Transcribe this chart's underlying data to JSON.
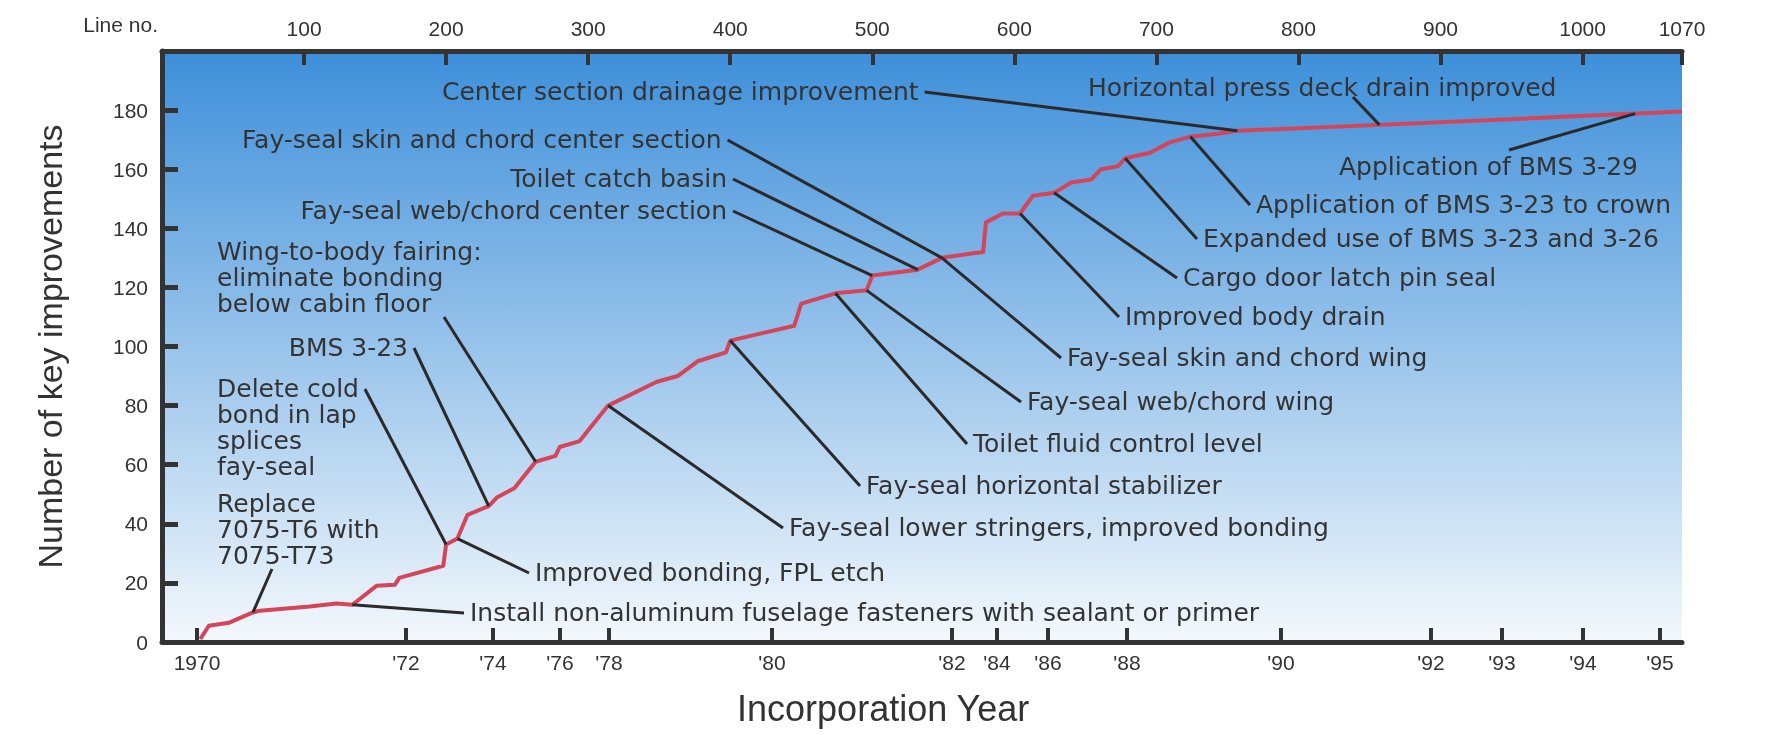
{
  "chart_data": {
    "type": "line",
    "xlabel": "Line no.",
    "ylabel": "Number of key improvements",
    "series": [
      {
        "color": "#d4455a",
        "x": [
          27,
          33,
          47,
          64,
          69,
          104,
          123,
          134,
          151,
          164,
          167,
          198,
          200,
          208,
          215,
          230,
          236,
          248,
          263,
          277,
          280,
          294,
          314,
          348,
          363,
          377,
          397,
          400,
          445,
          450,
          474,
          496,
          500,
          532,
          549,
          570,
          578,
          580,
          592,
          604,
          613,
          628,
          640,
          654,
          661,
          673,
          678,
          695,
          709,
          724,
          743,
          757,
          857,
          953,
          1070
        ],
        "values": [
          1,
          5.5,
          6.5,
          10,
          10.6,
          12,
          13,
          12.6,
          19,
          19.4,
          21.7,
          25.8,
          33,
          35,
          43,
          46,
          49,
          52,
          61,
          63,
          66,
          68,
          80,
          88,
          90,
          95,
          98,
          102,
          107,
          114.5,
          118,
          119,
          124,
          126,
          130,
          131.5,
          132,
          142,
          145,
          145,
          151,
          152,
          155.5,
          156.5,
          160,
          161,
          163.7,
          165.5,
          169,
          171,
          172,
          173,
          175,
          177,
          179.5
        ]
      }
    ],
    "xlim": [
      0,
      1070
    ],
    "xticks": [
      100,
      200,
      300,
      400,
      500,
      600,
      700,
      800,
      900,
      1000,
      1070
    ],
    "ylim": [
      0,
      200
    ],
    "yticks": [
      0,
      20,
      40,
      60,
      80,
      100,
      120,
      140,
      160,
      180
    ],
    "annotations": [
      {
        "text": "Replace\n7075-T6 with\n7075-T73",
        "x": 64,
        "y": 10
      },
      {
        "text": "Delete cold\nbond in lap\nsplices\nfay-seal",
        "x": 200,
        "y": 33
      },
      {
        "text": "BMS 3-23",
        "x": 230,
        "y": 46
      },
      {
        "text": "Wing-to-body fairing:\neliminate bonding\nbelow cabin floor",
        "x": 263,
        "y": 61
      },
      {
        "text": "Fay-seal web/chord center section",
        "x": 500,
        "y": 124
      },
      {
        "text": "Toilet catch basin",
        "x": 532,
        "y": 126
      },
      {
        "text": "Fay-seal skin and chord center section",
        "x": 549,
        "y": 130
      },
      {
        "text": "Center section drainage improvement",
        "x": 757,
        "y": 173
      },
      {
        "text": "Horizontal press deck drain improved",
        "x": 857,
        "y": 175
      },
      {
        "text": "Application of BMS 3-29",
        "x": 1037,
        "y": 178.8
      },
      {
        "text": "Application of BMS 3-23 to crown",
        "x": 724,
        "y": 171
      },
      {
        "text": "Expanded use of BMS 3-23 and 3-26",
        "x": 678,
        "y": 163.7
      },
      {
        "text": "Cargo door latch pin seal",
        "x": 628,
        "y": 152
      },
      {
        "text": "Improved body drain",
        "x": 604,
        "y": 145
      },
      {
        "text": "Fay-seal skin and chord wing",
        "x": 549,
        "y": 130
      },
      {
        "text": "Fay-seal web/chord wing",
        "x": 496,
        "y": 119
      },
      {
        "text": "Toilet fluid control level",
        "x": 474,
        "y": 118
      },
      {
        "text": "Fay-seal horizontal stabilizer",
        "x": 400,
        "y": 102
      },
      {
        "text": "Fay-seal lower stringers, improved bonding",
        "x": 314,
        "y": 80
      },
      {
        "text": "Improved bonding, FPL etch",
        "x": 208,
        "y": 35
      },
      {
        "text": "Install non-aluminum fuselage fasteners with sealant or primer",
        "x": 134,
        "y": 12.6
      },
      "1970",
      "'72",
      "'74",
      "'76",
      "'78",
      "'80",
      "'82",
      "'84",
      "'86",
      "'88",
      "'90",
      "'92",
      "'93",
      "'94",
      "'95",
      "Incorporation Year"
    ]
  }
}
